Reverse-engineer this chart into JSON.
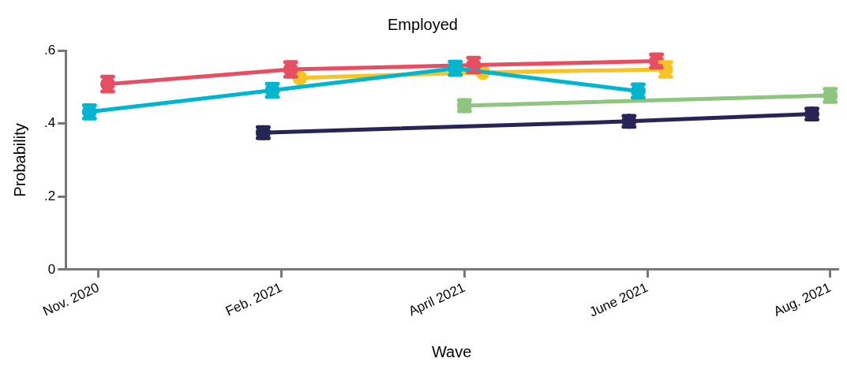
{
  "chart_data": {
    "type": "line",
    "title": "Employed",
    "xlabel": "Wave",
    "ylabel": "Probability",
    "categories": [
      "Nov. 2020",
      "Feb. 2021",
      "April 2021",
      "June 2021",
      "Aug. 2021"
    ],
    "ylim": [
      0,
      0.6
    ],
    "yticks": [
      0,
      {
        "value": 0.2,
        "label": ".2"
      },
      {
        "value": 0.4,
        "label": ".4"
      },
      {
        "value": 0.6,
        "label": ".6"
      }
    ],
    "grid": false,
    "legend": false,
    "marker": "circle",
    "series": [
      {
        "color": "#262556",
        "values": [
          null,
          0.375,
          null,
          0.406,
          0.426
        ],
        "errors": [
          null,
          0.015,
          null,
          0.015,
          0.015
        ]
      },
      {
        "color": "#00b6cf",
        "values": [
          0.432,
          0.491,
          0.551,
          0.489,
          null
        ],
        "errors": [
          0.018,
          0.018,
          0.018,
          0.018,
          null
        ]
      },
      {
        "color": "#8ec57f",
        "values": [
          null,
          null,
          0.449,
          null,
          0.477
        ],
        "errors": [
          null,
          null,
          0.015,
          null,
          0.018
        ]
      },
      {
        "color": "#e64f61",
        "values": [
          0.508,
          0.548,
          0.56,
          0.571,
          null
        ],
        "errors": [
          0.02,
          0.02,
          0.02,
          0.018,
          null
        ]
      },
      {
        "color": "#f8c323",
        "values": [
          null,
          0.525,
          0.54,
          0.548,
          null
        ],
        "errors": [
          null,
          null,
          null,
          0.02,
          null
        ]
      }
    ]
  }
}
